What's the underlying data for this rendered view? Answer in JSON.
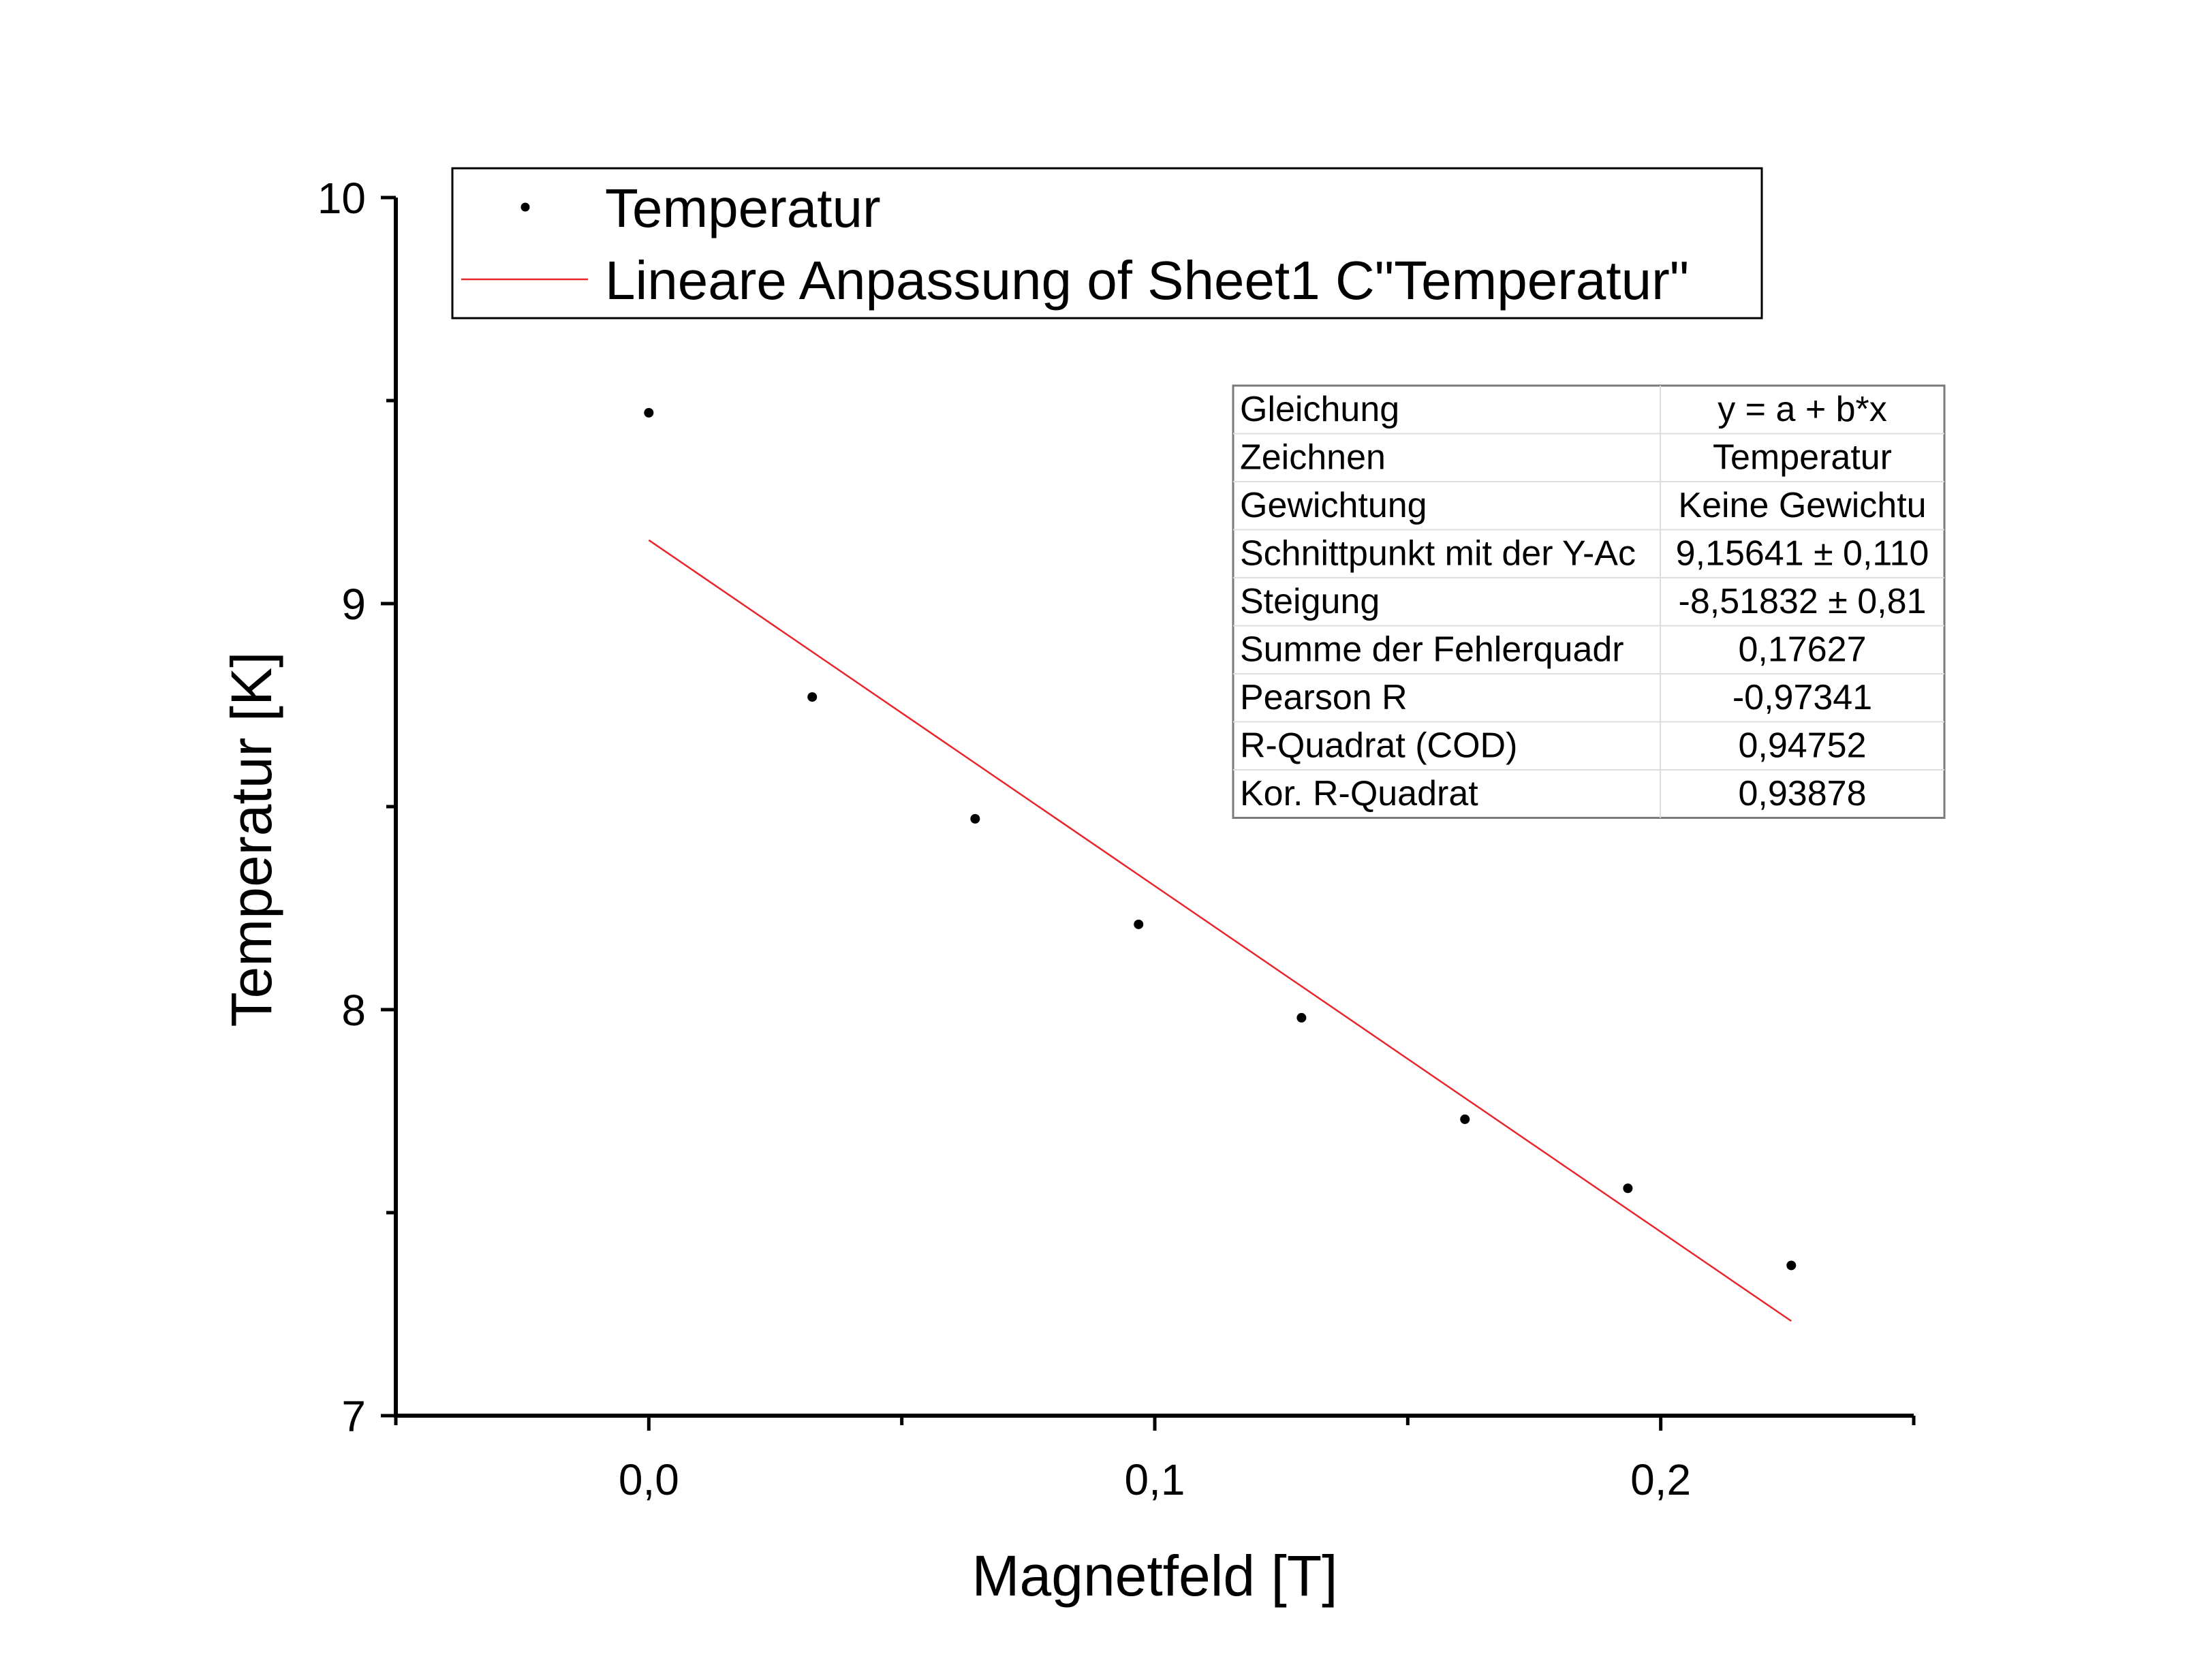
{
  "chart_data": {
    "type": "scatter",
    "title": "",
    "xlabel": "Magnetfeld [T]",
    "ylabel": "Temperatur [K]",
    "xlim": [
      -0.05,
      0.25
    ],
    "ylim": [
      7,
      10
    ],
    "x_ticks": [
      0.0,
      0.1,
      0.2
    ],
    "x_tick_labels": [
      "0,0",
      "0,1",
      "0,2"
    ],
    "x_minor_ticks": [
      -0.05,
      0.05,
      0.15,
      0.25
    ],
    "y_ticks": [
      7,
      8,
      9,
      10
    ],
    "y_tick_labels": [
      "7",
      "8",
      "9",
      "10"
    ],
    "y_minor_ticks": [
      7.5,
      8.5,
      9.5
    ],
    "grid": false,
    "series": [
      {
        "name": "Temperatur",
        "kind": "scatter",
        "color": "#000000",
        "points": [
          {
            "x": 0.0,
            "y": 9.47
          },
          {
            "x": 0.0323,
            "y": 8.77
          },
          {
            "x": 0.0645,
            "y": 8.47
          },
          {
            "x": 0.0968,
            "y": 8.21
          },
          {
            "x": 0.129,
            "y": 7.98
          },
          {
            "x": 0.1613,
            "y": 7.73
          },
          {
            "x": 0.1935,
            "y": 7.56
          },
          {
            "x": 0.2258,
            "y": 7.37
          }
        ]
      },
      {
        "name": "Lineare Anpassung of Sheet1 C\"Temperatur\"",
        "kind": "line",
        "color": "#e8262b",
        "points": [
          {
            "x": 0.0,
            "y": 9.1564
          },
          {
            "x": 0.2258,
            "y": 7.233
          }
        ]
      }
    ],
    "legend": {
      "placement": "top",
      "entries": [
        {
          "label": "Temperatur",
          "marker": "point",
          "color": "#000000"
        },
        {
          "label": "Lineare Anpassung of Sheet1 C\"Temperatur\"",
          "marker": "line",
          "color": "#e8262b"
        }
      ]
    },
    "fit_table": {
      "placement": "top-right",
      "rows": [
        {
          "label": "Gleichung",
          "value": "y = a + b*x"
        },
        {
          "label": "Zeichnen",
          "value": "Temperatur"
        },
        {
          "label": "Gewichtung",
          "value": "Keine Gewichtu"
        },
        {
          "label": "Schnittpunkt mit der Y-Ac",
          "value": "9,15641 ± 0,110"
        },
        {
          "label": "Steigung",
          "value": "-8,51832 ± 0,81"
        },
        {
          "label": "Summe der Fehlerquadr",
          "value": "0,17627"
        },
        {
          "label": "Pearson R",
          "value": "-0,97341"
        },
        {
          "label": "R-Quadrat (COD)",
          "value": "0,94752"
        },
        {
          "label": "Kor. R-Quadrat",
          "value": "0,93878"
        }
      ]
    }
  }
}
